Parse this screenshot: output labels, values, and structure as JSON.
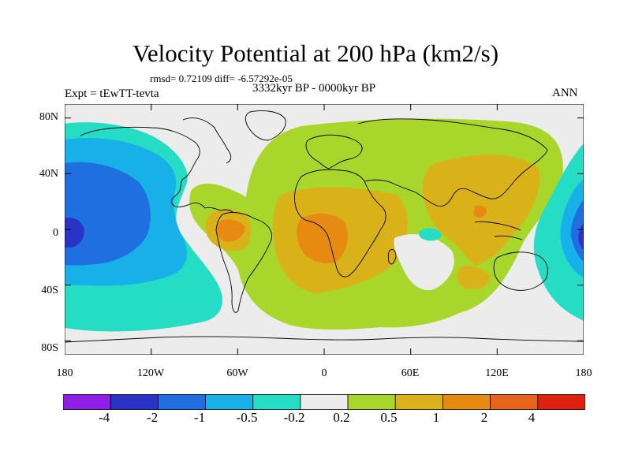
{
  "title": "Velocity Potential at 200 hPa (km2/s)",
  "stats": "rmsd= 0.72109 diff= -6.57292e-05",
  "experiment": "Expt = tEwTT-tevta",
  "period": "3332kyr BP - 0000kyr BP",
  "season": "ANN",
  "map": {
    "y_ticks": [
      "80N",
      "40N",
      "0",
      "40S",
      "80S"
    ],
    "x_ticks": [
      "180",
      "120W",
      "60W",
      "0",
      "60E",
      "120E",
      "180"
    ]
  },
  "colorbar": {
    "labels": [
      "-4",
      "-2",
      "-1",
      "-0.5",
      "-0.2",
      "0.2",
      "0.5",
      "1",
      "2",
      "4"
    ],
    "colors": [
      "#8f1fe6",
      "#2a32c8",
      "#1f6fe0",
      "#18b0e8",
      "#25dcc4",
      "#ececec",
      "#a9d62a",
      "#d9b21a",
      "#e68a12",
      "#e8641a",
      "#e02010"
    ]
  }
}
